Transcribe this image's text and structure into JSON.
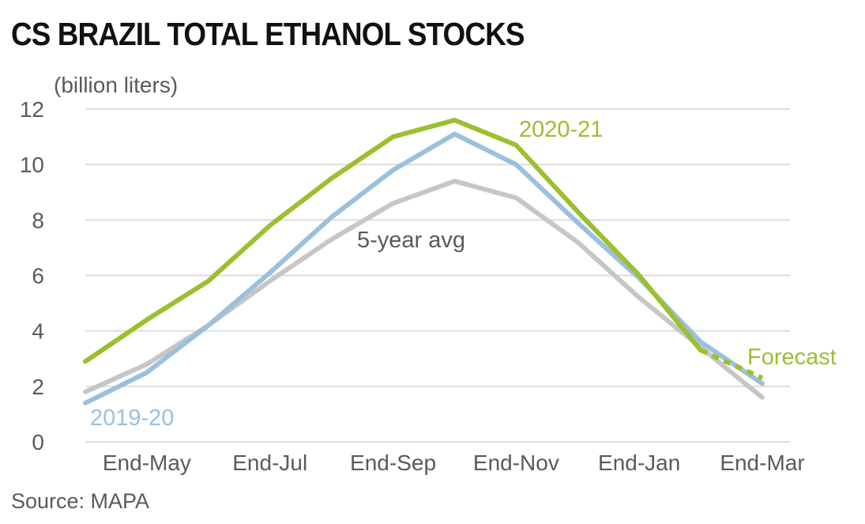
{
  "title": "CS BRAZIL TOTAL ETHANOL STOCKS",
  "y_unit": "(billion liters)",
  "source": "Source: MAPA",
  "colors": {
    "series_2020_21": "#9cbf2f",
    "series_2019_20": "#9bc0dc",
    "series_5yr": "#c6c6c6",
    "grid": "#dddddd",
    "axis_text": "#5a5a5a"
  },
  "chart_data": {
    "type": "line",
    "title": "CS BRAZIL TOTAL ETHANOL STOCKS",
    "ylabel": "(billion liters)",
    "xlabel": "",
    "ylim": [
      0,
      12
    ],
    "yticks": [
      0,
      2,
      4,
      6,
      8,
      10,
      12
    ],
    "xlim": [
      0,
      11
    ],
    "x_tick_positions": [
      1,
      3,
      5,
      7,
      9,
      11
    ],
    "x_tick_labels": [
      "End-May",
      "End-Jul",
      "End-Sep",
      "End-Nov",
      "End-Jan",
      "End-Mar"
    ],
    "grid": true,
    "series": [
      {
        "name": "5-year avg",
        "x": [
          0,
          1,
          2,
          3,
          4,
          5,
          6,
          7,
          8,
          9,
          10,
          11
        ],
        "values": [
          1.8,
          2.8,
          4.2,
          5.8,
          7.3,
          8.6,
          9.4,
          8.8,
          7.2,
          5.2,
          3.4,
          1.6
        ]
      },
      {
        "name": "2019-20",
        "x": [
          0,
          1,
          2,
          3,
          4,
          5,
          6,
          7,
          8,
          9,
          10,
          11
        ],
        "values": [
          1.4,
          2.5,
          4.2,
          6.1,
          8.1,
          9.8,
          11.1,
          10.0,
          7.9,
          5.9,
          3.6,
          2.1
        ]
      },
      {
        "name": "2020-21",
        "x": [
          0,
          1,
          2,
          3,
          4,
          5,
          6,
          7,
          8,
          9,
          10
        ],
        "values": [
          2.9,
          4.4,
          5.8,
          7.8,
          9.5,
          11.0,
          11.6,
          10.7,
          8.3,
          6.0,
          3.3
        ],
        "forecast": {
          "x": [
            10,
            11
          ],
          "values": [
            3.3,
            2.3
          ]
        }
      }
    ],
    "annotations": {
      "series_2020_21_label": "2020-21",
      "series_2019_20_label": "2019-20",
      "series_5yr_label": "5-year avg",
      "forecast_label": "Forecast"
    }
  }
}
